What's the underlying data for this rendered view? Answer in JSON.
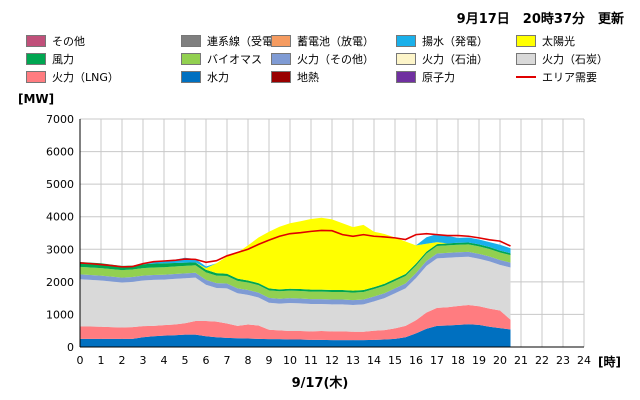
{
  "header": {
    "updated": "9月17日　20時37分　更新"
  },
  "axis": {
    "unit_label": "[MW]",
    "x_unit_label": "[時]",
    "date_label": "9/17(木)"
  },
  "legend": [
    {
      "label": "その他",
      "color": "#c0507a"
    },
    {
      "label": "連系線（受電）",
      "color": "#7f7f7f"
    },
    {
      "label": "蓄電池（放電）",
      "color": "#f59b60"
    },
    {
      "label": "揚水（発電）",
      "color": "#1ab0ea"
    },
    {
      "label": "太陽光",
      "color": "#ffff00"
    },
    {
      "label": "風力",
      "color": "#00a651"
    },
    {
      "label": "バイオマス",
      "color": "#92d050"
    },
    {
      "label": "火力（その他）",
      "color": "#7f9bd4"
    },
    {
      "label": "火力（石油）",
      "color": "#fdf5c9"
    },
    {
      "label": "火力（石炭）",
      "color": "#d9d9d9"
    },
    {
      "label": "火力（LNG）",
      "color": "#ff7c80"
    },
    {
      "label": "水力",
      "color": "#0070c0"
    },
    {
      "label": "地熱",
      "color": "#990000"
    },
    {
      "label": "原子力",
      "color": "#7030a0"
    },
    {
      "label": "エリア需要",
      "color": "#e00000",
      "line": true
    }
  ],
  "chart_data": {
    "type": "area",
    "stacked": true,
    "xlim": [
      0,
      24
    ],
    "ylim": [
      0,
      7000
    ],
    "x_ticks": [
      0,
      1,
      2,
      3,
      4,
      5,
      6,
      7,
      8,
      9,
      10,
      11,
      12,
      13,
      14,
      15,
      16,
      17,
      18,
      19,
      20,
      21,
      22,
      23,
      24
    ],
    "y_ticks": [
      0,
      1000,
      2000,
      3000,
      4000,
      5000,
      6000,
      7000
    ],
    "grid": true,
    "x": [
      0,
      0.5,
      1,
      1.5,
      2,
      2.5,
      3,
      3.5,
      4,
      4.5,
      5,
      5.5,
      6,
      6.5,
      7,
      7.5,
      8,
      8.5,
      9,
      9.5,
      10,
      10.5,
      11,
      11.5,
      12,
      12.5,
      13,
      13.5,
      14,
      14.5,
      15,
      15.5,
      16,
      16.5,
      17,
      17.5,
      18,
      18.5,
      19,
      19.5,
      20,
      20.5
    ],
    "series": [
      {
        "color": "#0070c0",
        "values": [
          250,
          250,
          250,
          250,
          250,
          250,
          300,
          330,
          350,
          360,
          380,
          380,
          330,
          300,
          280,
          270,
          260,
          250,
          240,
          240,
          230,
          230,
          220,
          220,
          210,
          210,
          210,
          210,
          220,
          230,
          250,
          300,
          420,
          560,
          650,
          660,
          680,
          700,
          680,
          620,
          580,
          540
        ]
      },
      {
        "color": "#ff7c80",
        "values": [
          380,
          380,
          370,
          360,
          350,
          360,
          340,
          320,
          320,
          330,
          350,
          420,
          470,
          480,
          440,
          380,
          430,
          410,
          290,
          270,
          260,
          260,
          260,
          270,
          270,
          270,
          260,
          260,
          280,
          290,
          320,
          350,
          400,
          500,
          550,
          560,
          580,
          590,
          570,
          560,
          540,
          300
        ]
      },
      {
        "color": "#d9d9d9",
        "values": [
          1450,
          1430,
          1420,
          1400,
          1380,
          1390,
          1400,
          1410,
          1400,
          1400,
          1380,
          1330,
          1110,
          1030,
          1080,
          1000,
          910,
          860,
          830,
          820,
          860,
          850,
          840,
          830,
          830,
          830,
          820,
          840,
          900,
          980,
          1080,
          1150,
          1300,
          1430,
          1520,
          1520,
          1500,
          1480,
          1460,
          1450,
          1400,
          1600
        ]
      },
      {
        "color": "#7f9bd4",
        "values": [
          150,
          150,
          150,
          150,
          150,
          150,
          150,
          150,
          150,
          150,
          150,
          150,
          150,
          150,
          150,
          150,
          150,
          150,
          150,
          150,
          150,
          150,
          150,
          150,
          150,
          150,
          150,
          150,
          150,
          150,
          150,
          150,
          150,
          150,
          150,
          150,
          150,
          150,
          150,
          150,
          150,
          150
        ]
      },
      {
        "color": "#92d050",
        "values": [
          230,
          230,
          230,
          230,
          230,
          230,
          230,
          230,
          230,
          230,
          230,
          230,
          230,
          230,
          230,
          230,
          230,
          230,
          230,
          230,
          230,
          230,
          230,
          230,
          230,
          230,
          230,
          230,
          230,
          230,
          230,
          230,
          230,
          230,
          230,
          230,
          230,
          230,
          230,
          230,
          230,
          230
        ]
      },
      {
        "color": "#00a651",
        "values": [
          150,
          150,
          150,
          140,
          130,
          120,
          120,
          120,
          120,
          110,
          100,
          90,
          80,
          80,
          70,
          70,
          60,
          60,
          60,
          60,
          60,
          60,
          60,
          60,
          60,
          60,
          60,
          60,
          60,
          60,
          60,
          60,
          60,
          60,
          60,
          60,
          60,
          60,
          60,
          60,
          60,
          60
        ]
      },
      {
        "color": "#ffff00",
        "values": [
          0,
          0,
          0,
          0,
          0,
          0,
          0,
          0,
          0,
          0,
          0,
          0,
          50,
          300,
          530,
          800,
          1080,
          1400,
          1740,
          1920,
          2010,
          2080,
          2170,
          2210,
          2170,
          2050,
          1950,
          2000,
          1700,
          1530,
          1270,
          1000,
          560,
          240,
          60,
          0,
          0,
          0,
          0,
          0,
          0,
          0
        ]
      },
      {
        "color": "#1ab0ea",
        "values": [
          0,
          0,
          0,
          0,
          0,
          0,
          0,
          50,
          70,
          100,
          150,
          100,
          50,
          0,
          0,
          0,
          0,
          0,
          0,
          0,
          0,
          0,
          0,
          0,
          0,
          0,
          0,
          0,
          0,
          0,
          0,
          0,
          0,
          200,
          250,
          230,
          150,
          150,
          150,
          150,
          180,
          150
        ]
      }
    ],
    "demand": [
      2580,
      2560,
      2530,
      2500,
      2460,
      2470,
      2560,
      2620,
      2640,
      2660,
      2700,
      2690,
      2600,
      2650,
      2800,
      2900,
      3000,
      3150,
      3280,
      3400,
      3480,
      3510,
      3550,
      3580,
      3570,
      3450,
      3400,
      3450,
      3400,
      3380,
      3350,
      3300,
      3450,
      3480,
      3450,
      3420,
      3420,
      3400,
      3350,
      3290,
      3250,
      3100
    ]
  }
}
